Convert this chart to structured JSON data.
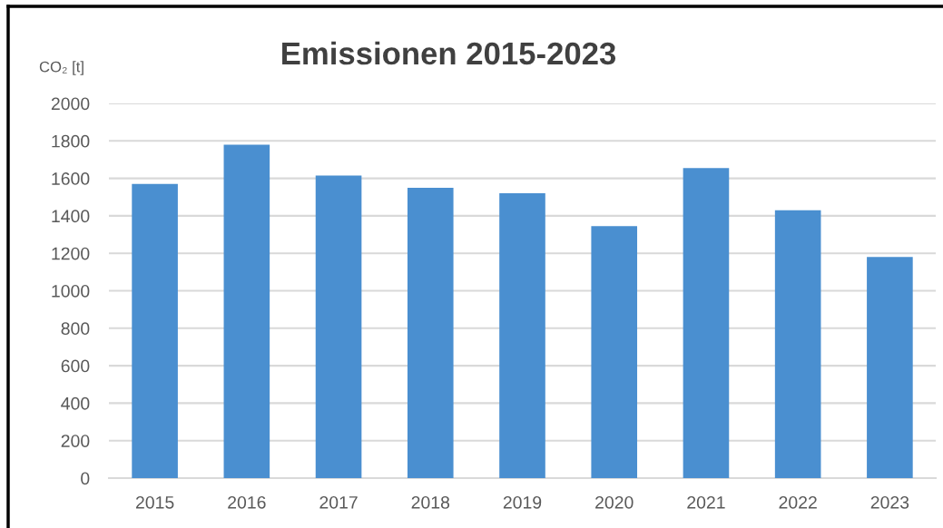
{
  "chart_data": {
    "type": "bar",
    "title": "Emissionen 2015-2023",
    "ylabel": "CO₂ [t]",
    "categories": [
      "2015",
      "2016",
      "2017",
      "2018",
      "2019",
      "2020",
      "2021",
      "2022",
      "2023"
    ],
    "values": [
      1570,
      1780,
      1615,
      1550,
      1520,
      1345,
      1655,
      1430,
      1180
    ],
    "color": "#4a8fd0",
    "ylim": [
      0,
      2000
    ],
    "yticks": [
      0,
      200,
      400,
      600,
      800,
      1000,
      1200,
      1400,
      1600,
      1800,
      2000
    ],
    "grid": "y"
  }
}
